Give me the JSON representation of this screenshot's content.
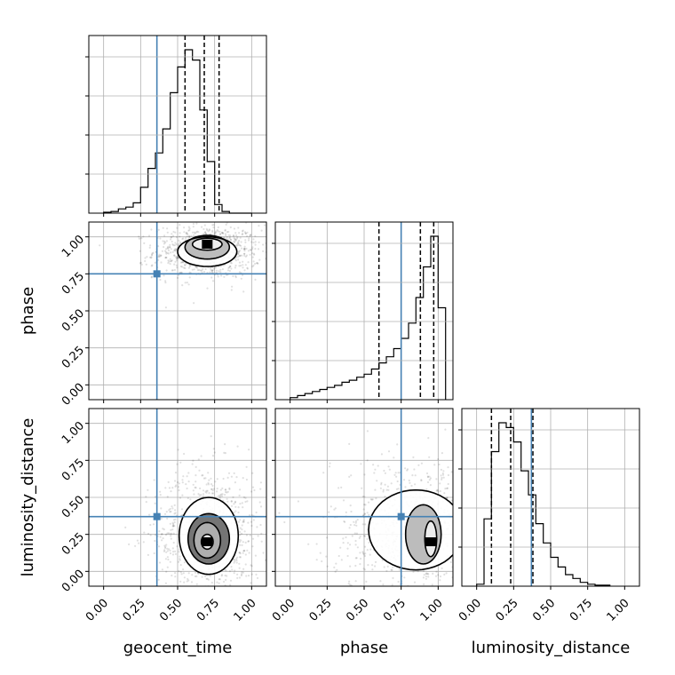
{
  "chart_data": {
    "type": "corner",
    "parameters": [
      "geocent_time",
      "phase",
      "luminosity_distance"
    ],
    "truths": [
      0.36,
      0.75,
      0.37
    ],
    "range": [
      -0.1,
      1.1
    ],
    "tick_values": [
      0.0,
      0.25,
      0.5,
      0.75,
      1.0
    ],
    "tick_labels": [
      "0.00",
      "0.25",
      "0.50",
      "0.75",
      "1.00"
    ],
    "grid": true,
    "truth_color": "#4682b4",
    "colors": {
      "hist": "#000000",
      "grid": "#b0b0b0",
      "truth": "#4682b4"
    },
    "marginals": [
      {
        "parameter": "geocent_time",
        "quantiles": [
          0.55,
          0.68,
          0.78
        ],
        "bin_edges": [
          0.0,
          0.05,
          0.1,
          0.15,
          0.2,
          0.25,
          0.3,
          0.35,
          0.4,
          0.45,
          0.5,
          0.55,
          0.6,
          0.65,
          0.7,
          0.75,
          0.8,
          0.85,
          0.9,
          0.95,
          1.0
        ],
        "counts": [
          1,
          2,
          5,
          7,
          12,
          30,
          52,
          70,
          98,
          140,
          170,
          190,
          178,
          120,
          60,
          10,
          2,
          0,
          0,
          0
        ]
      },
      {
        "parameter": "phase",
        "quantiles": [
          0.6,
          0.88,
          0.97
        ],
        "bin_edges": [
          0.0,
          0.05,
          0.1,
          0.15,
          0.2,
          0.25,
          0.3,
          0.35,
          0.4,
          0.45,
          0.5,
          0.55,
          0.6,
          0.65,
          0.7,
          0.75,
          0.8,
          0.85,
          0.9,
          0.95,
          1.0,
          1.05
        ],
        "counts": [
          2,
          4,
          6,
          8,
          10,
          12,
          14,
          17,
          19,
          22,
          25,
          30,
          36,
          42,
          50,
          60,
          75,
          100,
          130,
          160,
          90
        ]
      },
      {
        "parameter": "luminosity_distance",
        "quantiles": [
          0.1,
          0.23,
          0.38
        ],
        "bin_edges": [
          0.0,
          0.05,
          0.1,
          0.15,
          0.2,
          0.25,
          0.3,
          0.35,
          0.4,
          0.45,
          0.5,
          0.55,
          0.6,
          0.65,
          0.7,
          0.75,
          0.8,
          0.85,
          0.9
        ],
        "counts": [
          2,
          70,
          140,
          170,
          165,
          150,
          120,
          95,
          65,
          45,
          30,
          20,
          12,
          8,
          4,
          2,
          1,
          1
        ]
      }
    ],
    "pairs": [
      {
        "x": "geocent_time",
        "y": "phase",
        "mode": [
          0.7,
          0.95
        ],
        "contour_levels": [
          {
            "cx": 0.7,
            "cy": 0.95,
            "rx": 0.1,
            "ry": 0.04
          },
          {
            "cx": 0.7,
            "cy": 0.93,
            "rx": 0.15,
            "ry": 0.08
          },
          {
            "cx": 0.7,
            "cy": 0.9,
            "rx": 0.2,
            "ry": 0.1
          }
        ]
      },
      {
        "x": "geocent_time",
        "y": "luminosity_distance",
        "mode": [
          0.7,
          0.2
        ],
        "contour_levels": [
          {
            "cx": 0.7,
            "cy": 0.2,
            "rx": 0.04,
            "ry": 0.05
          },
          {
            "cx": 0.7,
            "cy": 0.21,
            "rx": 0.09,
            "ry": 0.12
          },
          {
            "cx": 0.71,
            "cy": 0.22,
            "rx": 0.14,
            "ry": 0.17
          },
          {
            "cx": 0.71,
            "cy": 0.24,
            "rx": 0.2,
            "ry": 0.26
          }
        ]
      },
      {
        "x": "phase",
        "y": "luminosity_distance",
        "mode": [
          0.95,
          0.2
        ],
        "contour_levels": [
          {
            "cx": 0.95,
            "cy": 0.22,
            "rx": 0.04,
            "ry": 0.12
          },
          {
            "cx": 0.9,
            "cy": 0.25,
            "rx": 0.12,
            "ry": 0.2
          },
          {
            "cx": 0.85,
            "cy": 0.28,
            "rx": 0.32,
            "ry": 0.27
          }
        ]
      }
    ]
  }
}
